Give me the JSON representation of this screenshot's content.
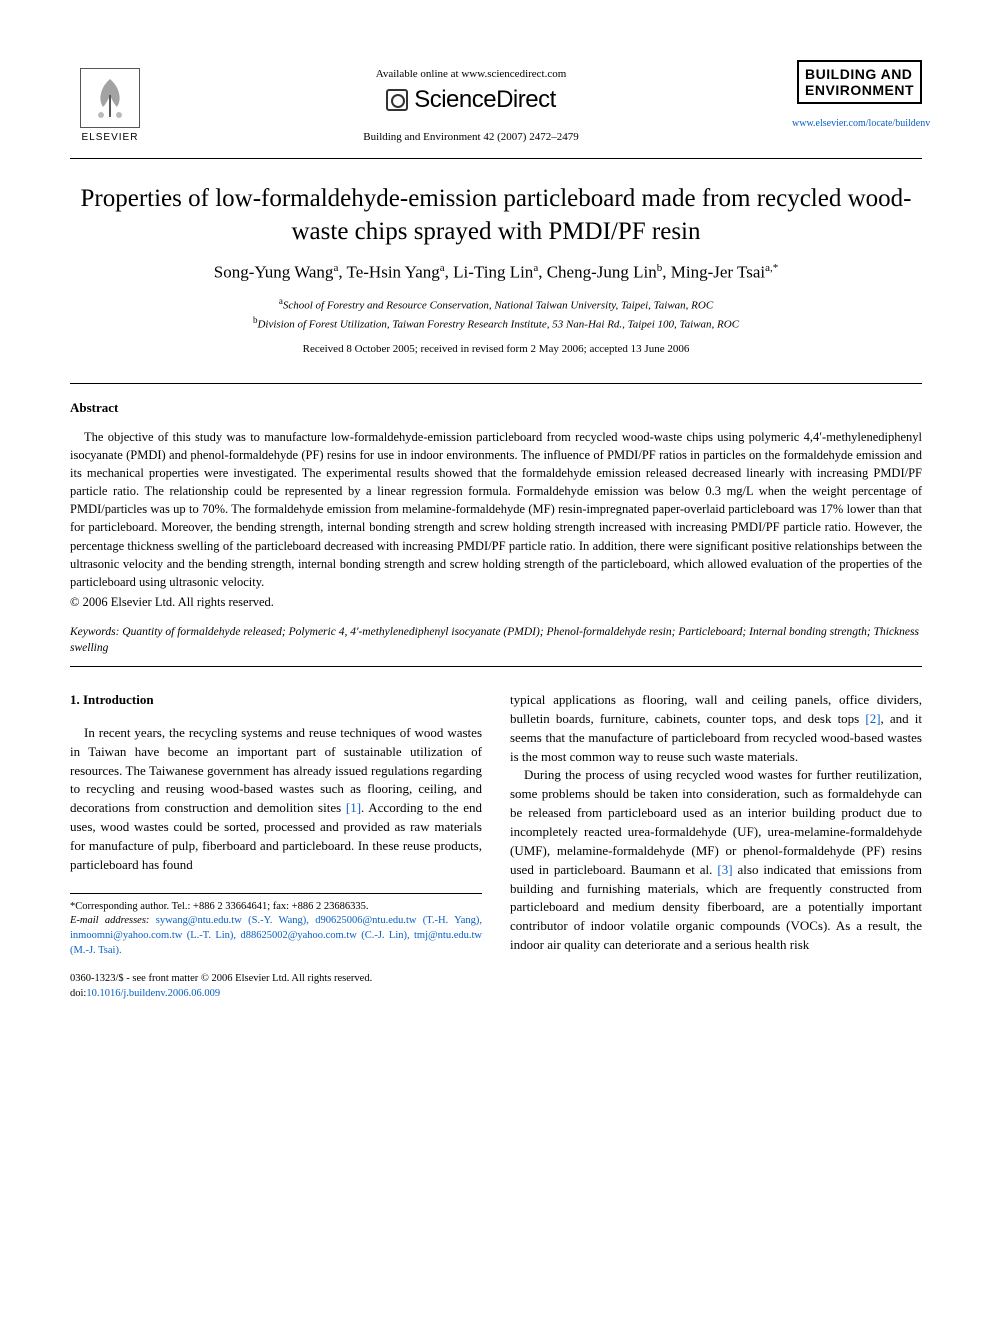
{
  "header": {
    "available_online": "Available online at www.sciencedirect.com",
    "sciencedirect": "ScienceDirect",
    "journal_ref": "Building and Environment 42 (2007) 2472–2479",
    "elsevier_label": "ELSEVIER",
    "journal_logo_line1": "BUILDING AND",
    "journal_logo_line2": "ENVIRONMENT",
    "journal_link": "www.elsevier.com/locate/buildenv"
  },
  "title": "Properties of low-formaldehyde-emission particleboard made from recycled wood-waste chips sprayed with PMDI/PF resin",
  "authors_html": "Song-Yung Wang<sup>a</sup>, Te-Hsin Yang<sup>a</sup>, Li-Ting Lin<sup>a</sup>, Cheng-Jung Lin<sup>b</sup>, Ming-Jer Tsai<sup>a,*</sup>",
  "affiliations": {
    "a": "School of Forestry and Resource Conservation, National Taiwan University, Taipei, Taiwan, ROC",
    "b": "Division of Forest Utilization, Taiwan Forestry Research Institute, 53 Nan-Hai Rd., Taipei 100, Taiwan, ROC"
  },
  "dates": "Received 8 October 2005; received in revised form 2 May 2006; accepted 13 June 2006",
  "abstract": {
    "heading": "Abstract",
    "text": "The objective of this study was to manufacture low-formaldehyde-emission particleboard from recycled wood-waste chips using polymeric 4,4′-methylenediphenyl isocyanate (PMDI) and phenol-formaldehyde (PF) resins for use in indoor environments. The influence of PMDI/PF ratios in particles on the formaldehyde emission and its mechanical properties were investigated. The experimental results showed that the formaldehyde emission released decreased linearly with increasing PMDI/PF particle ratio. The relationship could be represented by a linear regression formula. Formaldehyde emission was below 0.3 mg/L when the weight percentage of PMDI/particles was up to 70%. The formaldehyde emission from melamine-formaldehyde (MF) resin-impregnated paper-overlaid particleboard was 17% lower than that for particleboard. Moreover, the bending strength, internal bonding strength and screw holding strength increased with increasing PMDI/PF particle ratio. However, the percentage thickness swelling of the particleboard decreased with increasing PMDI/PF particle ratio. In addition, there were significant positive relationships between the ultrasonic velocity and the bending strength, internal bonding strength and screw holding strength of the particleboard, which allowed evaluation of the properties of the particleboard using ultrasonic velocity.",
    "copyright": "© 2006 Elsevier Ltd. All rights reserved."
  },
  "keywords": {
    "label": "Keywords:",
    "text": "Quantity of formaldehyde released; Polymeric 4, 4′-methylenediphenyl isocyanate (PMDI); Phenol-formaldehyde resin; Particleboard; Internal bonding strength; Thickness swelling"
  },
  "intro": {
    "heading": "1. Introduction",
    "col1_p1": "In recent years, the recycling systems and reuse techniques of wood wastes in Taiwan have become an important part of sustainable utilization of resources. The Taiwanese government has already issued regulations regarding to recycling and reusing wood-based wastes such as flooring, ceiling, and decorations from construction and demolition sites [1]. According to the end uses, wood wastes could be sorted, processed and provided as raw materials for manufacture of pulp, fiberboard and particleboard. In these reuse products, particleboard has found",
    "col2_p1": "typical applications as flooring, wall and ceiling panels, office dividers, bulletin boards, furniture, cabinets, counter tops, and desk tops [2], and it seems that the manufacture of particleboard from recycled wood-based wastes is the most common way to reuse such waste materials.",
    "col2_p2": "During the process of using recycled wood wastes for further reutilization, some problems should be taken into consideration, such as formaldehyde can be released from particleboard used as an interior building product due to incompletely reacted urea-formaldehyde (UF), urea-melamine-formaldehyde (UMF), melamine-formaldehyde (MF) or phenol-formaldehyde (PF) resins used in particleboard. Baumann et al. [3] also indicated that emissions from building and furnishing materials, which are frequently constructed from particleboard and medium density fiberboard, are a potentially important contributor of indoor volatile organic compounds (VOCs). As a result, the indoor air quality can deteriorate and a serious health risk"
  },
  "footnotes": {
    "corresponding": "*Corresponding author. Tel.: +886 2 33664641; fax: +886 2 23686335.",
    "email_label": "E-mail addresses:",
    "emails": "sywang@ntu.edu.tw (S.-Y. Wang), d90625006@ntu.edu.tw (T.-H. Yang), inmoomni@yahoo.com.tw (L.-T. Lin), d88625002@yahoo.com.tw (C.-J. Lin), tmj@ntu.edu.tw (M.-J. Tsai)."
  },
  "footer": {
    "front_matter": "0360-1323/$ - see front matter © 2006 Elsevier Ltd. All rights reserved.",
    "doi_label": "doi:",
    "doi": "10.1016/j.buildenv.2006.06.009"
  },
  "colors": {
    "link": "#0a5fc4",
    "text": "#000000",
    "background": "#ffffff"
  }
}
